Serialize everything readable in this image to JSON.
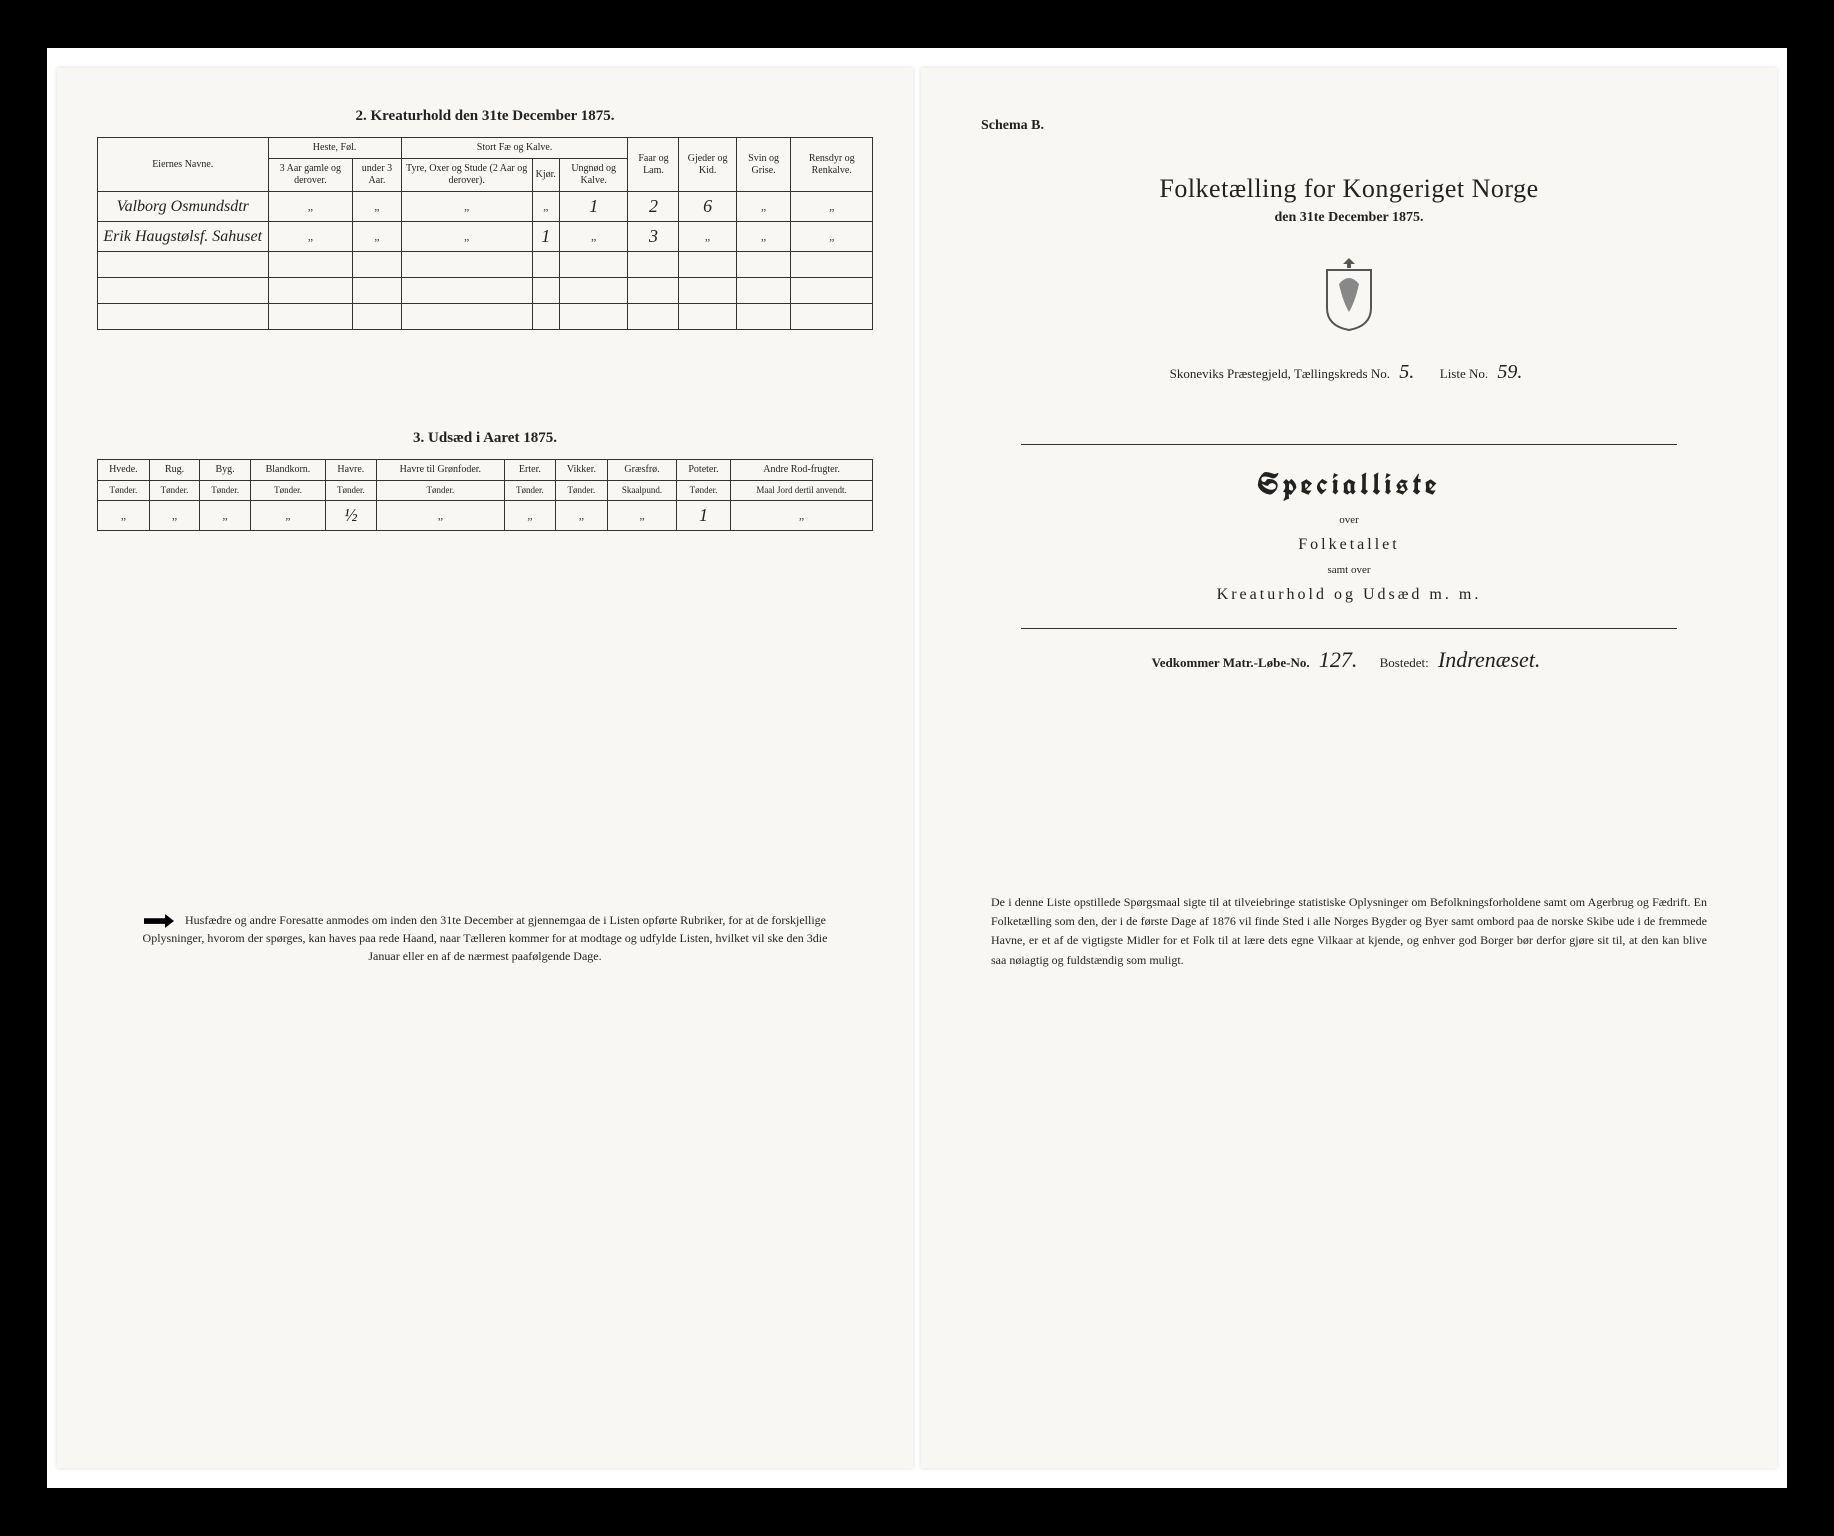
{
  "left": {
    "section2_title": "2.  Kreaturhold den 31te December 1875.",
    "table2": {
      "col_eier": "Eiernes Navne.",
      "grp_heste": "Heste, Føl.",
      "grp_stort": "Stort Fæ og Kalve.",
      "col_faar": "Faar og Lam.",
      "col_gjed": "Gjeder og Kid.",
      "col_svin": "Svin og Grise.",
      "col_rens": "Rensdyr og Renkalve.",
      "sub_heste1": "3 Aar gamle og derover.",
      "sub_heste2": "under 3 Aar.",
      "sub_stort1": "Tyre, Oxer og Stude (2 Aar og derover).",
      "sub_stort2": "Kjør.",
      "sub_stort3": "Ungnød og Kalve.",
      "rows": [
        {
          "name": "Valborg Osmundsdtr",
          "c": [
            "„",
            "„",
            "„",
            "„",
            "1",
            "2",
            "6",
            "„",
            "„"
          ]
        },
        {
          "name": "Erik Haugstølsf. Sahuset",
          "c": [
            "„",
            "„",
            "„",
            "1",
            "„",
            "3",
            "„",
            "„",
            "„"
          ]
        }
      ]
    },
    "section3_title": "3.  Udsæd i Aaret 1875.",
    "table3": {
      "cols": [
        "Hvede.",
        "Rug.",
        "Byg.",
        "Blandkorn.",
        "Havre.",
        "Havre til Grønfoder.",
        "Erter.",
        "Vikker.",
        "Græsfrø.",
        "Poteter.",
        "Andre Rod-frugter."
      ],
      "units": [
        "Tønder.",
        "Tønder.",
        "Tønder.",
        "Tønder.",
        "Tønder.",
        "Tønder.",
        "Tønder.",
        "Tønder.",
        "Skaalpund.",
        "Tønder.",
        "Maal Jord dertil anvendt."
      ],
      "row": [
        "„",
        "„",
        "„",
        "„",
        "½",
        "„",
        "„",
        "„",
        "„",
        "1",
        "„"
      ]
    },
    "footnote": "Husfædre og andre Foresatte anmodes om inden den 31te December at gjennemgaa de i Listen opførte Rubriker, for at de forskjellige Oplysninger, hvorom der spørges, kan haves paa rede Haand, naar Tælleren kommer for at modtage og udfylde Listen, hvilket vil ske den 3die Januar eller en af de nærmest paafølgende Dage."
  },
  "right": {
    "schema": "Schema B.",
    "title": "Folketælling for Kongeriget Norge",
    "date": "den 31te December 1875.",
    "meta_prefix": "Skoneviks Præstegjeld, Tællingskreds No.",
    "meta_kreds": "5.",
    "meta_liste_lbl": "Liste No.",
    "meta_liste": "59.",
    "special": "Specialliste",
    "over": "over",
    "folket": "Folketallet",
    "samt": "samt over",
    "kreat": "Kreaturhold og Udsæd m. m.",
    "ved_lbl1": "Vedkommer Matr.-Løbe-No.",
    "ved_num": "127.",
    "ved_lbl2": "Bostedet:",
    "ved_place": "Indrenæset.",
    "body": "De i denne Liste opstillede Spørgsmaal sigte til at tilveiebringe statistiske Oplysninger om Befolkningsforholdene samt om Agerbrug og Fædrift. En Folketælling som den, der i de første Dage af 1876 vil finde Sted i alle Norges Bygder og Byer samt ombord paa de norske Skibe ude i de fremmede Havne, er et af de vigtigste Midler for et Folk til at lære dets egne Vilkaar at kjende, og enhver god Borger bør derfor gjøre sit til, at den kan blive saa nøiagtig og fuldstændig som muligt."
  }
}
